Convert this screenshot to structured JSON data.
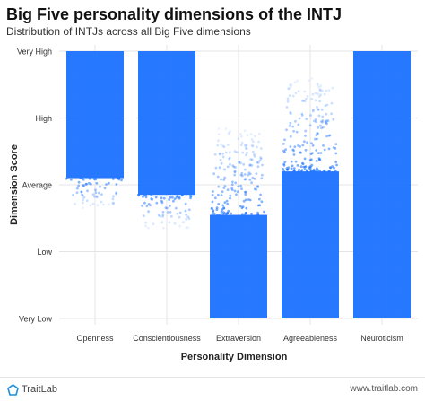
{
  "chart_data": {
    "type": "scatter",
    "title": "Big Five personality dimensions of the INTJ",
    "subtitle": "Distribution of INTJs across all Big Five dimensions",
    "xlabel": "Personality Dimension",
    "ylabel": "Dimension Score",
    "y_ticks": [
      "Very Low",
      "Low",
      "Average",
      "High",
      "Very High"
    ],
    "y_tick_values": [
      0,
      1,
      2,
      3,
      4
    ],
    "ylim": [
      0,
      4
    ],
    "grid": true,
    "point_color": "#1f74ff",
    "categories": [
      "Openness",
      "Conscientiousness",
      "Extraversion",
      "Agreeableness",
      "Neuroticism"
    ],
    "series": [
      {
        "values_range": [
          1.65,
          4.0
        ],
        "dense_range": [
          2.1,
          4.0
        ]
      },
      {
        "values_range": [
          1.35,
          4.0
        ],
        "dense_range": [
          1.85,
          4.0
        ]
      },
      {
        "values_range": [
          0.0,
          2.85
        ],
        "dense_range": [
          0.0,
          1.55
        ]
      },
      {
        "values_range": [
          0.0,
          3.6
        ],
        "dense_range": [
          0.0,
          2.2
        ]
      },
      {
        "values_range": [
          0.0,
          4.0
        ],
        "dense_range": [
          0.0,
          4.0
        ]
      }
    ]
  },
  "footer": {
    "brand": "TraitLab",
    "url": "www.traitlab.com"
  }
}
